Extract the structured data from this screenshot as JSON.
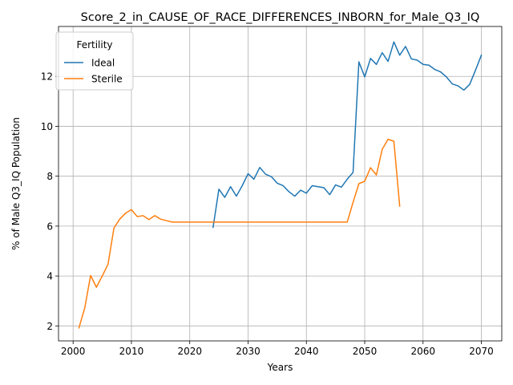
{
  "chart_data": {
    "type": "line",
    "title": "Score_2_in_CAUSE_OF_RACE_DIFFERENCES_INBORN_for_Male_Q3_IQ",
    "xlabel": "Years",
    "ylabel": "% of Male Q3_IQ Population",
    "xlim": [
      1997.5,
      2073.5
    ],
    "ylim": [
      1.4,
      14.0
    ],
    "xticks": [
      2000,
      2010,
      2020,
      2030,
      2040,
      2050,
      2060,
      2070
    ],
    "yticks": [
      2,
      4,
      6,
      8,
      10,
      12
    ],
    "grid": true,
    "legend": {
      "title": "Fertility",
      "placement": "upper left"
    },
    "series": [
      {
        "name": "Ideal",
        "color": "#1f77b4",
        "x": [
          2024,
          2025,
          2026,
          2027,
          2028,
          2029,
          2030,
          2031,
          2032,
          2033,
          2034,
          2035,
          2036,
          2037,
          2038,
          2039,
          2040,
          2041,
          2042,
          2043,
          2044,
          2045,
          2046,
          2047,
          2048,
          2049,
          2050,
          2051,
          2052,
          2053,
          2054,
          2055,
          2056,
          2057,
          2058,
          2059,
          2060,
          2061,
          2062,
          2063,
          2064,
          2065,
          2066,
          2067,
          2068,
          2069,
          2070
        ],
        "y": [
          5.95,
          7.48,
          7.15,
          7.58,
          7.2,
          7.62,
          8.1,
          7.88,
          8.35,
          8.08,
          7.98,
          7.72,
          7.62,
          7.38,
          7.2,
          7.44,
          7.32,
          7.62,
          7.58,
          7.54,
          7.26,
          7.65,
          7.56,
          7.88,
          8.15,
          12.58,
          11.98,
          12.72,
          12.48,
          12.95,
          12.6,
          13.38,
          12.85,
          13.2,
          12.7,
          12.65,
          12.48,
          12.45,
          12.28,
          12.18,
          11.98,
          11.7,
          11.62,
          11.45,
          11.68,
          12.25,
          12.85
        ]
      },
      {
        "name": "Sterile",
        "color": "#ff7f0e",
        "x": [
          2001,
          2002,
          2003,
          2004,
          2005,
          2006,
          2007,
          2008,
          2009,
          2010,
          2011,
          2012,
          2013,
          2014,
          2015,
          2016,
          2017,
          2018,
          2019,
          2020,
          2021,
          2022,
          2023,
          2024,
          2025,
          2026,
          2027,
          2028,
          2029,
          2030,
          2031,
          2032,
          2033,
          2034,
          2035,
          2036,
          2037,
          2038,
          2039,
          2040,
          2041,
          2042,
          2043,
          2044,
          2045,
          2046,
          2047,
          2048,
          2049,
          2050,
          2051,
          2052,
          2053,
          2054,
          2055,
          2056
        ],
        "y": [
          1.92,
          2.72,
          4.02,
          3.55,
          4.0,
          4.48,
          5.92,
          6.28,
          6.52,
          6.66,
          6.38,
          6.42,
          6.26,
          6.42,
          6.28,
          6.22,
          6.16,
          6.16,
          6.16,
          6.16,
          6.16,
          6.16,
          6.16,
          6.16,
          6.16,
          6.16,
          6.16,
          6.16,
          6.16,
          6.16,
          6.16,
          6.16,
          6.16,
          6.16,
          6.16,
          6.16,
          6.16,
          6.16,
          6.16,
          6.16,
          6.16,
          6.16,
          6.16,
          6.16,
          6.16,
          6.16,
          6.16,
          6.95,
          7.7,
          7.8,
          8.34,
          8.05,
          9.08,
          9.48,
          9.4,
          6.8
        ]
      }
    ]
  }
}
